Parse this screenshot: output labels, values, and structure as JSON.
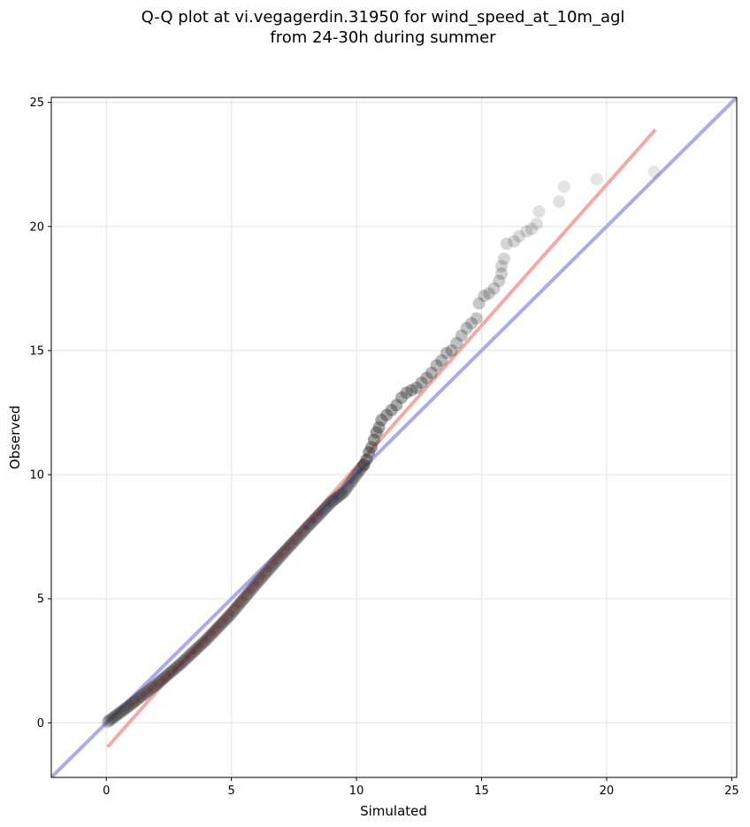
{
  "chart_data": {
    "type": "scatter",
    "title_line1": "Q-Q plot at vi.vegagerdin.31950 for wind_speed_at_10m_agl",
    "title_line2": "from 24-30h during summer",
    "xlabel": "Simulated",
    "ylabel": "Observed",
    "xlim": [
      -2.2,
      25.2
    ],
    "ylim": [
      -2.2,
      25.2
    ],
    "xticks": [
      0,
      5,
      10,
      15,
      20,
      25
    ],
    "yticks": [
      0,
      5,
      10,
      15,
      20,
      25
    ],
    "grid": true,
    "colors": {
      "points": "#333333",
      "identity_line": "#aaaaee",
      "fit_line": "#f4a9a9",
      "core_band_red": "#c80000",
      "core_band_blue": "#2222aa"
    },
    "identity_line": {
      "from": [
        -2.2,
        -2.2
      ],
      "to": [
        25.2,
        25.2
      ]
    },
    "fit_line": {
      "from": [
        0.05,
        -0.97
      ],
      "to": [
        21.95,
        23.9
      ]
    },
    "tail_points": [
      [
        10.3,
        10.4
      ],
      [
        10.4,
        10.6
      ],
      [
        10.5,
        10.9
      ],
      [
        10.6,
        11.1
      ],
      [
        10.7,
        11.4
      ],
      [
        10.8,
        11.7
      ],
      [
        10.9,
        11.9
      ],
      [
        11.0,
        12.2
      ],
      [
        11.2,
        12.4
      ],
      [
        11.4,
        12.6
      ],
      [
        11.6,
        12.8
      ],
      [
        11.8,
        13.1
      ],
      [
        12.0,
        13.3
      ],
      [
        12.2,
        13.4
      ],
      [
        12.4,
        13.5
      ],
      [
        12.6,
        13.7
      ],
      [
        12.8,
        13.9
      ],
      [
        13.0,
        14.1
      ],
      [
        13.2,
        14.4
      ],
      [
        13.4,
        14.6
      ],
      [
        13.6,
        14.9
      ],
      [
        13.8,
        15.0
      ],
      [
        14.0,
        15.3
      ],
      [
        14.2,
        15.6
      ],
      [
        14.4,
        15.9
      ],
      [
        14.6,
        16.1
      ],
      [
        14.8,
        16.3
      ],
      [
        14.9,
        16.9
      ],
      [
        15.1,
        17.2
      ],
      [
        15.3,
        17.3
      ],
      [
        15.5,
        17.5
      ],
      [
        15.7,
        17.8
      ],
      [
        15.8,
        18.1
      ],
      [
        15.8,
        18.4
      ],
      [
        15.9,
        18.7
      ],
      [
        16.0,
        19.3
      ],
      [
        16.3,
        19.4
      ],
      [
        16.5,
        19.6
      ],
      [
        16.8,
        19.8
      ],
      [
        17.0,
        19.9
      ],
      [
        17.2,
        20.1
      ],
      [
        17.3,
        20.6
      ],
      [
        18.1,
        21.0
      ],
      [
        18.3,
        21.6
      ],
      [
        19.6,
        21.9
      ],
      [
        21.9,
        22.2
      ]
    ]
  }
}
